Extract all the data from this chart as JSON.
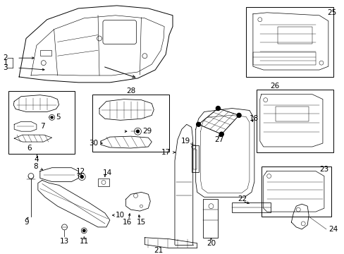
{
  "bg_color": "#ffffff",
  "fig_width": 4.89,
  "fig_height": 3.6,
  "dpi": 100,
  "label_fontsize": 7.5
}
